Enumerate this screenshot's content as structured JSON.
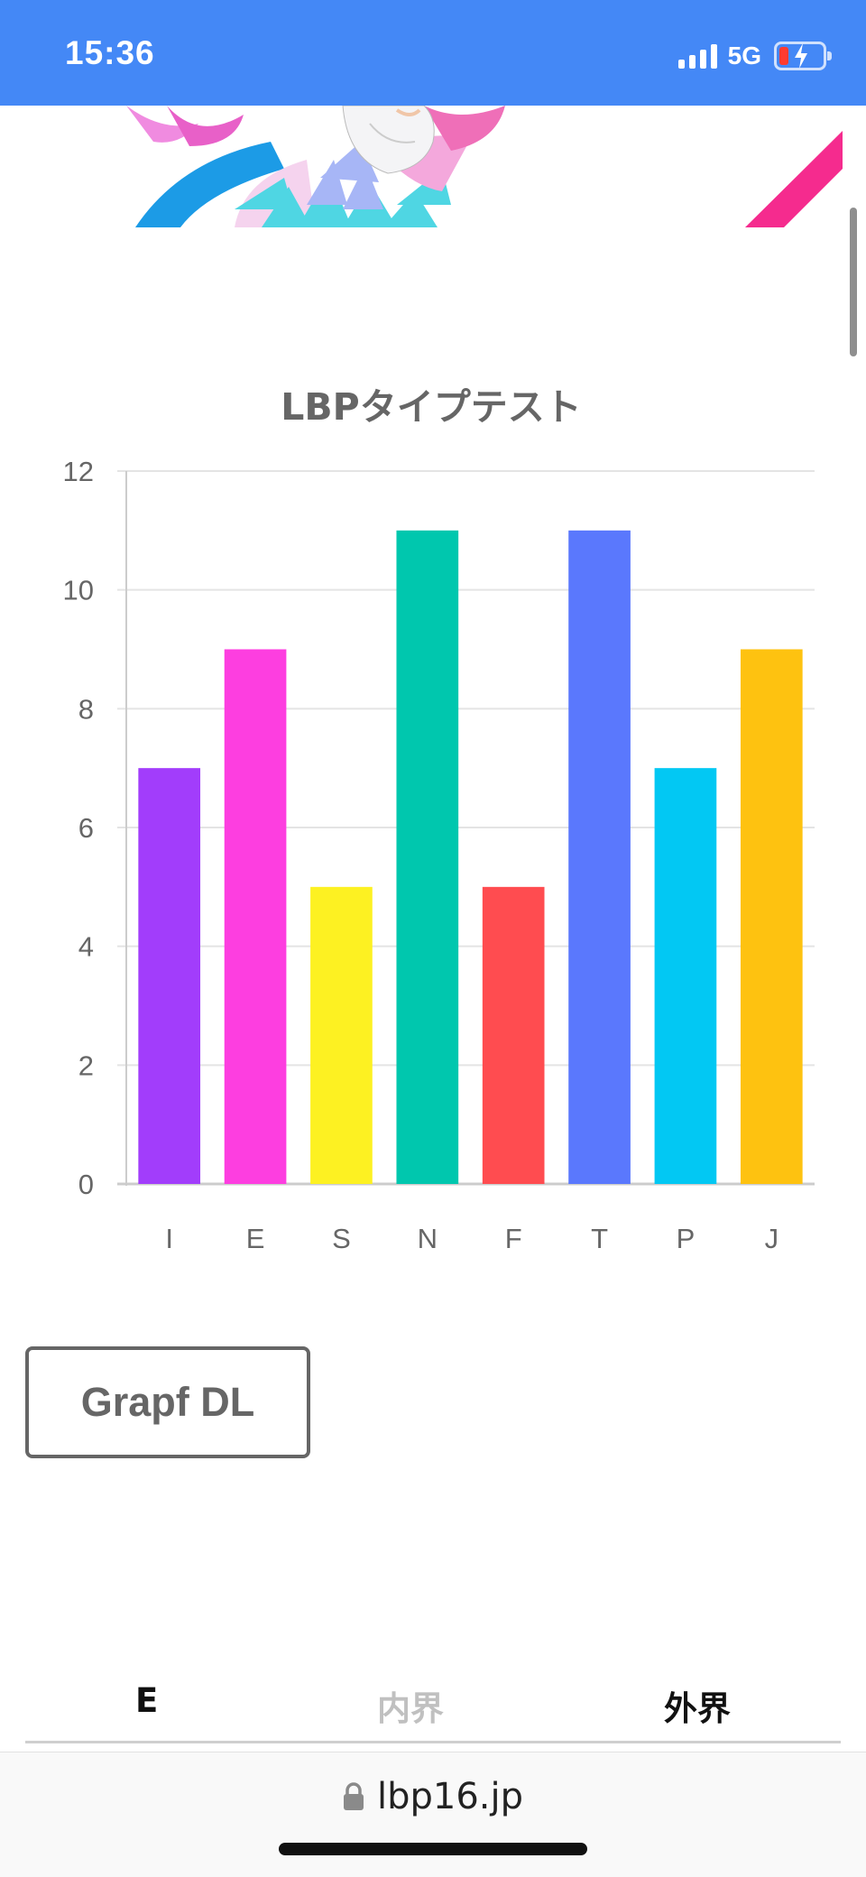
{
  "status_bar": {
    "time": "15:36",
    "network": "5G"
  },
  "chart_data": {
    "type": "bar",
    "title": "LBPタイプテスト",
    "categories": [
      "I",
      "E",
      "S",
      "N",
      "F",
      "T",
      "P",
      "J"
    ],
    "values": [
      7,
      9,
      5,
      11,
      5,
      11,
      7,
      9
    ],
    "colors": [
      "#a23dfb",
      "#fd3ee0",
      "#fdf122",
      "#00c7ae",
      "#ff4c50",
      "#5a78fd",
      "#02c8f3",
      "#fec210"
    ],
    "ylim": [
      0,
      12
    ],
    "yticks": [
      0,
      2,
      4,
      6,
      8,
      10,
      12
    ],
    "xlabel": "",
    "ylabel": "",
    "grid": true,
    "legend": "none"
  },
  "actions": {
    "download_label": "Grapf DL"
  },
  "tabs": {
    "e_label": "E",
    "inner_label": "内界",
    "outer_label": "外界"
  },
  "browser": {
    "url": "lbp16.jp"
  }
}
